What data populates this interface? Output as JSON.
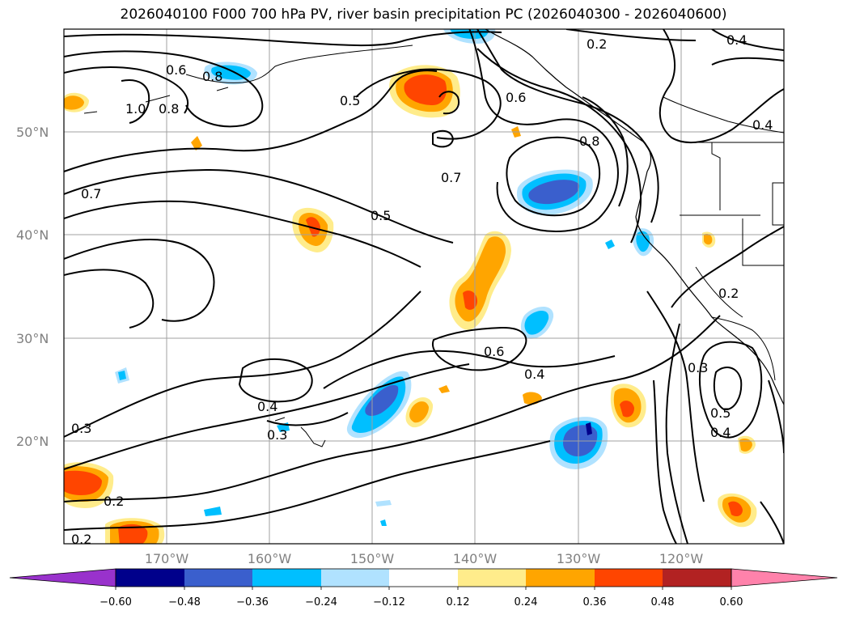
{
  "title": "2026040100 F000 700 hPa PV, river basin precipitation PC (2026040300 - 2026040600)",
  "map": {
    "lat_labels": [
      "50°N",
      "40°N",
      "30°N",
      "20°N"
    ],
    "lon_labels": [
      "170°W",
      "160°W",
      "150°W",
      "140°W",
      "130°W",
      "120°W"
    ],
    "contour_labels": [
      "0.2",
      "0.4",
      "0.6",
      "0.8",
      "1.0",
      "0.8",
      "0.5",
      "0.6",
      "0.8",
      "0.4",
      "0.7",
      "0.7",
      "0.5",
      "0.6",
      "0.4",
      "0.4",
      "0.3",
      "0.3",
      "0.2",
      "0.2",
      "0.2",
      "0.3",
      "0.5",
      "0.4"
    ]
  },
  "colorbar": {
    "ticks": [
      "−0.60",
      "−0.48",
      "−0.36",
      "−0.24",
      "−0.12",
      "0.12",
      "0.24",
      "0.36",
      "0.48",
      "0.60"
    ],
    "colors": [
      "#9932cc",
      "#00008b",
      "#3a5fcd",
      "#00bfff",
      "#b0e2ff",
      "#ffffff",
      "#ffec8b",
      "#ffa500",
      "#ff4500",
      "#b22222",
      "#ff82ab"
    ]
  }
}
